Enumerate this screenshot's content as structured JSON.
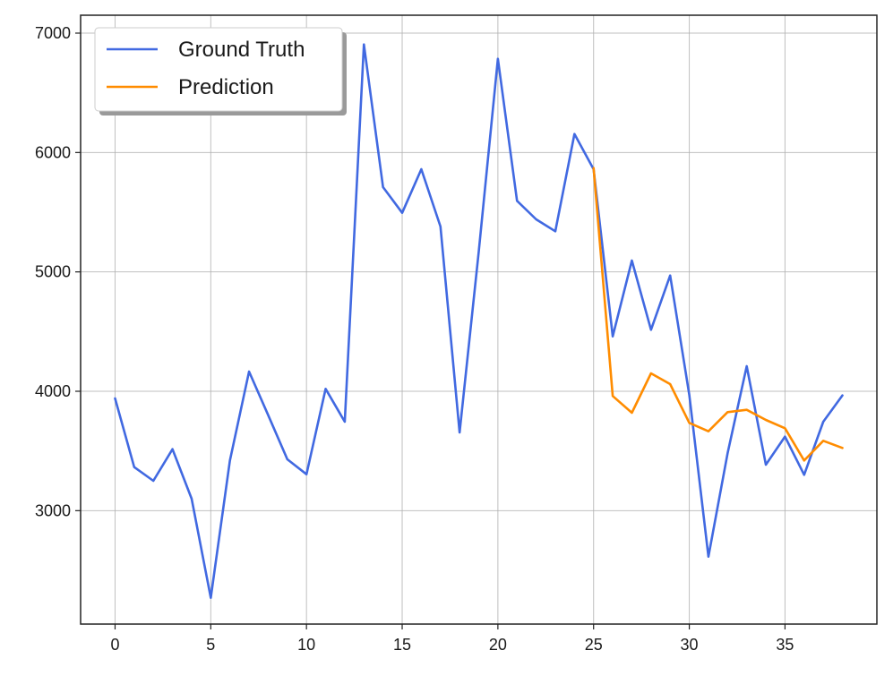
{
  "chart_data": {
    "type": "line",
    "title": "",
    "xlabel": "",
    "ylabel": "",
    "xlim": [
      -1.8,
      39.8
    ],
    "ylim": [
      2050,
      7150
    ],
    "xticks": [
      0,
      5,
      10,
      15,
      20,
      25,
      30,
      35
    ],
    "yticks": [
      3000,
      4000,
      5000,
      6000,
      7000
    ],
    "xtick_labels": [
      "0",
      "5",
      "10",
      "15",
      "20",
      "25",
      "30",
      "35"
    ],
    "ytick_labels": [
      "3000",
      "4000",
      "5000",
      "6000",
      "7000"
    ],
    "grid": true,
    "legend_position": "top-left",
    "series": [
      {
        "name": "Ground Truth",
        "color": "#4169E1",
        "x": [
          0,
          1,
          2,
          3,
          4,
          5,
          6,
          7,
          8,
          9,
          10,
          11,
          12,
          13,
          14,
          15,
          16,
          17,
          18,
          19,
          20,
          21,
          22,
          23,
          24,
          25,
          26,
          27,
          28,
          29,
          30,
          31,
          32,
          33,
          34,
          35,
          36,
          37,
          38
        ],
        "y": [
          3940,
          3365,
          3250,
          3515,
          3100,
          2270,
          3420,
          4165,
          3800,
          3430,
          3305,
          4020,
          3745,
          6905,
          5710,
          5495,
          5860,
          5380,
          3655,
          5170,
          6785,
          5595,
          5440,
          5340,
          6155,
          5860,
          4460,
          5095,
          4515,
          4970,
          3970,
          2615,
          3480,
          4210,
          3385,
          3620,
          3300,
          3745,
          3965
        ]
      },
      {
        "name": "Prediction",
        "color": "#FF8C00",
        "x": [
          25,
          26,
          27,
          28,
          29,
          30,
          31,
          32,
          33,
          34,
          35,
          36,
          37,
          38
        ],
        "y": [
          5870,
          3960,
          3820,
          4150,
          4060,
          3735,
          3665,
          3825,
          3845,
          3760,
          3690,
          3420,
          3585,
          3525
        ]
      }
    ]
  }
}
